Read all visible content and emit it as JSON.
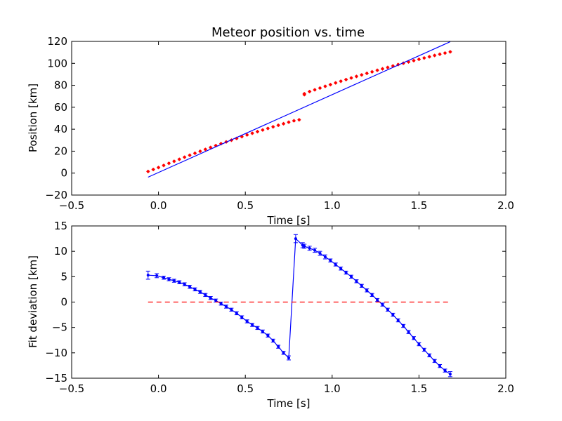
{
  "chart_data": [
    {
      "type": "scatter",
      "title": "Meteor position vs. time",
      "xlabel": "Time [s]",
      "ylabel": "Position [km]",
      "xlim": [
        -0.5,
        2.0
      ],
      "ylim": [
        -20,
        120
      ],
      "xticks": [
        -0.5,
        0.0,
        0.5,
        1.0,
        1.5,
        2.0
      ],
      "xtick_labels": [
        "−0.5",
        "0.0",
        "0.5",
        "1.0",
        "1.5",
        "2.0"
      ],
      "yticks": [
        -20,
        0,
        20,
        40,
        60,
        80,
        100,
        120
      ],
      "ytick_labels": [
        "−20",
        "0",
        "20",
        "40",
        "60",
        "80",
        "100",
        "120"
      ],
      "grid": false,
      "series": [
        {
          "kind": "points",
          "color": "#ff0000",
          "marker": "dot-with-errorbar",
          "x": [
            -0.06,
            -0.03,
            0.0,
            0.03,
            0.06,
            0.09,
            0.12,
            0.15,
            0.18,
            0.21,
            0.24,
            0.27,
            0.3,
            0.33,
            0.36,
            0.39,
            0.42,
            0.45,
            0.48,
            0.51,
            0.54,
            0.57,
            0.6,
            0.63,
            0.66,
            0.69,
            0.72,
            0.75,
            0.78,
            0.81,
            0.84,
            0.84,
            0.87,
            0.9,
            0.93,
            0.96,
            0.99,
            1.02,
            1.05,
            1.08,
            1.11,
            1.14,
            1.17,
            1.2,
            1.23,
            1.26,
            1.29,
            1.32,
            1.35,
            1.38,
            1.41,
            1.44,
            1.47,
            1.5,
            1.53,
            1.56,
            1.59,
            1.62,
            1.65,
            1.68
          ],
          "y": [
            1.5,
            3.3,
            5.1,
            7.0,
            8.9,
            10.8,
            12.6,
            14.5,
            16.3,
            18.1,
            19.9,
            21.6,
            23.4,
            25.1,
            26.8,
            28.4,
            30.0,
            31.6,
            33.2,
            34.8,
            36.3,
            37.8,
            39.3,
            40.7,
            42.2,
            43.6,
            45.0,
            46.4,
            47.7,
            48.6,
            71.5,
            72.3,
            74.3,
            75.9,
            77.5,
            79.1,
            80.6,
            82.2,
            83.7,
            85.2,
            86.7,
            88.1,
            89.5,
            90.9,
            92.3,
            93.7,
            95.0,
            96.3,
            97.6,
            98.9,
            100.1,
            101.3,
            102.5,
            103.7,
            104.9,
            106.0,
            107.2,
            108.3,
            109.4,
            110.5
          ]
        },
        {
          "kind": "line",
          "color": "#0000ff",
          "x": [
            -0.06,
            1.68
          ],
          "y": [
            -3.7,
            119.7
          ]
        }
      ]
    },
    {
      "type": "line",
      "title": "",
      "xlabel": "Time [s]",
      "ylabel": "Fit deviation [km]",
      "xlim": [
        -0.5,
        2.0
      ],
      "ylim": [
        -15,
        15
      ],
      "xticks": [
        -0.5,
        0.0,
        0.5,
        1.0,
        1.5,
        2.0
      ],
      "xtick_labels": [
        "−0.5",
        "0.0",
        "0.5",
        "1.0",
        "1.5",
        "2.0"
      ],
      "yticks": [
        -15,
        -10,
        -5,
        0,
        5,
        10,
        15
      ],
      "ytick_labels": [
        "−15",
        "−10",
        "−5",
        "0",
        "5",
        "10",
        "15"
      ],
      "grid": false,
      "series": [
        {
          "kind": "line-errorbar",
          "color": "#0000ff",
          "x": [
            -0.06,
            -0.01,
            0.03,
            0.06,
            0.09,
            0.12,
            0.15,
            0.18,
            0.21,
            0.24,
            0.27,
            0.3,
            0.33,
            0.36,
            0.39,
            0.42,
            0.45,
            0.48,
            0.51,
            0.54,
            0.57,
            0.6,
            0.63,
            0.66,
            0.69,
            0.72,
            0.75,
            0.79,
            0.83,
            0.84,
            0.87,
            0.9,
            0.93,
            0.96,
            0.99,
            1.02,
            1.05,
            1.08,
            1.11,
            1.14,
            1.17,
            1.2,
            1.23,
            1.26,
            1.29,
            1.32,
            1.35,
            1.38,
            1.41,
            1.44,
            1.47,
            1.5,
            1.53,
            1.56,
            1.59,
            1.62,
            1.65,
            1.68
          ],
          "y": [
            5.3,
            5.2,
            4.8,
            4.5,
            4.2,
            3.9,
            3.5,
            3.0,
            2.5,
            2.0,
            1.4,
            0.8,
            0.3,
            -0.3,
            -0.9,
            -1.5,
            -2.2,
            -3.0,
            -3.8,
            -4.5,
            -5.1,
            -5.8,
            -6.6,
            -7.6,
            -8.8,
            -10.0,
            -11.0,
            12.5,
            11.2,
            11.0,
            10.6,
            10.2,
            9.6,
            8.9,
            8.2,
            7.4,
            6.6,
            5.8,
            5.0,
            4.1,
            3.2,
            2.3,
            1.4,
            0.4,
            -0.5,
            -1.5,
            -2.5,
            -3.6,
            -4.7,
            -5.9,
            -7.1,
            -8.3,
            -9.4,
            -10.5,
            -11.6,
            -12.6,
            -13.5,
            -14.2
          ],
          "yerr": [
            0.8,
            0.4,
            0.3,
            0.3,
            0.3,
            0.3,
            0.3,
            0.3,
            0.3,
            0.3,
            0.3,
            0.3,
            0.3,
            0.3,
            0.3,
            0.3,
            0.3,
            0.3,
            0.3,
            0.3,
            0.3,
            0.3,
            0.3,
            0.3,
            0.3,
            0.3,
            0.4,
            0.8,
            0.5,
            0.4,
            0.4,
            0.4,
            0.4,
            0.4,
            0.3,
            0.3,
            0.3,
            0.3,
            0.3,
            0.3,
            0.3,
            0.3,
            0.3,
            0.3,
            0.3,
            0.3,
            0.3,
            0.3,
            0.3,
            0.3,
            0.3,
            0.3,
            0.3,
            0.3,
            0.3,
            0.3,
            0.3,
            0.5
          ]
        },
        {
          "kind": "dashed-line",
          "color": "#ff0000",
          "x": [
            -0.06,
            1.68
          ],
          "y": [
            0,
            0
          ]
        }
      ]
    }
  ]
}
